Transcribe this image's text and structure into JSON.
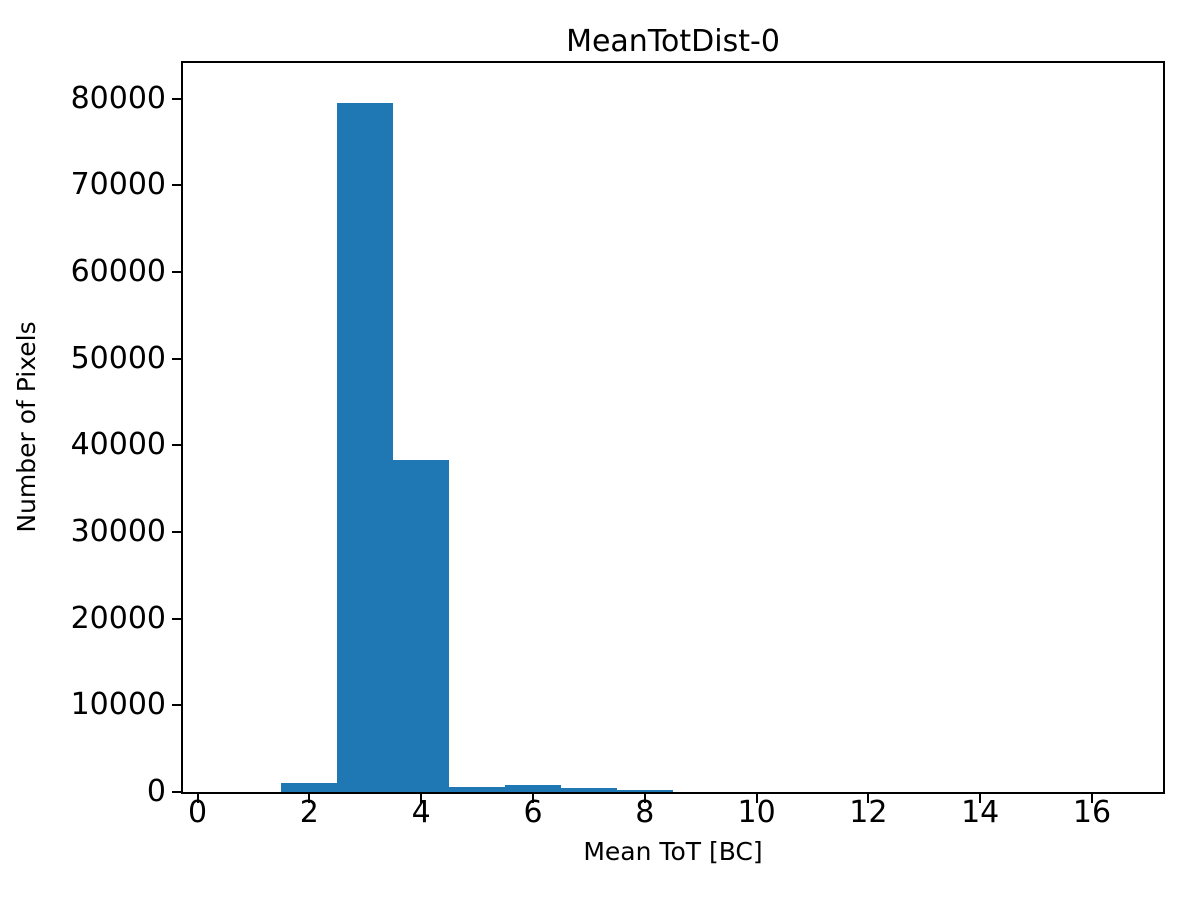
{
  "chart_data": {
    "type": "bar",
    "subtype": "histogram",
    "title": "MeanTotDist-0",
    "xlabel": "Mean ToT [BC]",
    "ylabel": "Number of Pixels",
    "bar_color": "#1f77b4",
    "axis_color": "#000000",
    "background_color": "#ffffff",
    "grid": false,
    "legend": false,
    "xlim": [
      -0.26,
      17.27
    ],
    "ylim": [
      0,
      84100
    ],
    "xticks": [
      0,
      2,
      4,
      6,
      8,
      10,
      12,
      14,
      16
    ],
    "yticks": [
      0,
      10000,
      20000,
      30000,
      40000,
      50000,
      60000,
      70000,
      80000
    ],
    "bin_width": 1,
    "bars": [
      {
        "x0": 1.5,
        "x1": 2.5,
        "count": 1050
      },
      {
        "x0": 2.5,
        "x1": 3.5,
        "count": 79500
      },
      {
        "x0": 3.5,
        "x1": 4.5,
        "count": 38300
      },
      {
        "x0": 4.5,
        "x1": 5.5,
        "count": 550
      },
      {
        "x0": 5.5,
        "x1": 6.5,
        "count": 800
      },
      {
        "x0": 6.5,
        "x1": 7.5,
        "count": 500
      },
      {
        "x0": 7.5,
        "x1": 8.5,
        "count": 200
      }
    ]
  }
}
